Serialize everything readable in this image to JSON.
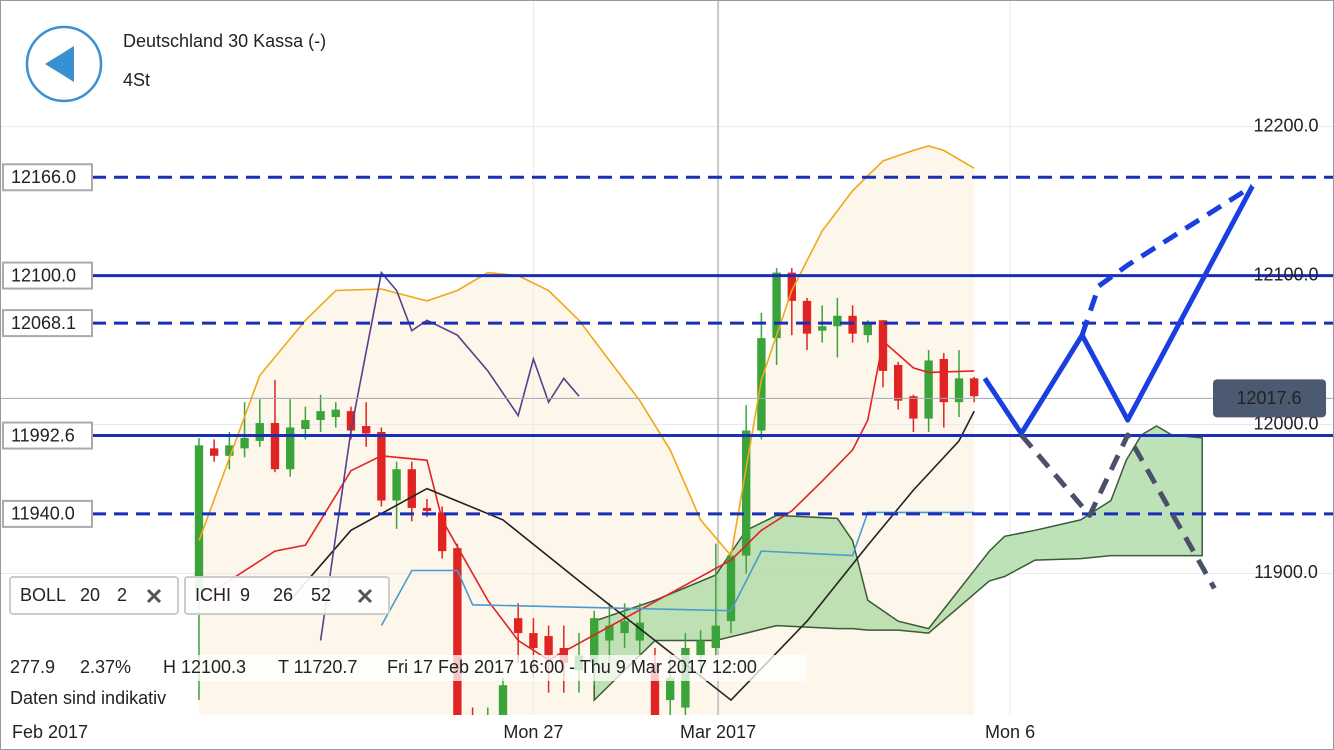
{
  "chart_data": {
    "type": "candlestick",
    "title": "Deutschland 30 Kassa (-)",
    "subtitle": "4St",
    "x": [
      0,
      1,
      2,
      3,
      4,
      5,
      6,
      7,
      8,
      9,
      10,
      11,
      12,
      13,
      14,
      15,
      16,
      17,
      18,
      19,
      20,
      21,
      22,
      23,
      24,
      25,
      26,
      27,
      28,
      29,
      30,
      31,
      32,
      33,
      34,
      35,
      36,
      37,
      38,
      39,
      40,
      41,
      42,
      43,
      44,
      45,
      46,
      47,
      48,
      49,
      50,
      51
    ],
    "open": [
      11889,
      11984,
      11979,
      11984,
      11989,
      12001,
      11970,
      11997,
      12003,
      12005,
      12009,
      11999,
      11995,
      11949,
      11970,
      11944,
      11941,
      11917,
      11800,
      11790,
      11790,
      11870,
      11860,
      11858,
      11850,
      11835,
      11840,
      11855,
      11860,
      11855,
      11840,
      11815,
      11810,
      11845,
      11850,
      11868,
      11912,
      11996,
      12058,
      12102,
      12083,
      12063,
      12066,
      12073,
      12060,
      12070,
      12040,
      12019,
      12004,
      12044,
      12015,
      12031
    ],
    "high": [
      11991,
      11990,
      11995,
      12015,
      12017,
      12030,
      12017,
      12012,
      12020,
      12015,
      12012,
      12015,
      11998,
      11975,
      11975,
      11950,
      11945,
      11920,
      11810,
      11810,
      11830,
      11880,
      11870,
      11865,
      11865,
      11860,
      11875,
      11880,
      11880,
      11880,
      11850,
      11845,
      11860,
      11862,
      11920,
      11915,
      12013,
      12075,
      12105,
      12105,
      12085,
      12080,
      12085,
      12080,
      12070,
      12070,
      12042,
      12020,
      12050,
      12048,
      12050,
      12032
    ],
    "low": [
      11815,
      11975,
      11970,
      11978,
      11985,
      11968,
      11965,
      11990,
      11995,
      11998,
      11990,
      11985,
      11945,
      11930,
      11935,
      11938,
      11910,
      11790,
      11780,
      11780,
      11785,
      11840,
      11830,
      11820,
      11820,
      11820,
      11825,
      11840,
      11850,
      11845,
      11790,
      11800,
      11800,
      11830,
      11845,
      11860,
      11900,
      11990,
      12040,
      12060,
      12050,
      12055,
      12045,
      12055,
      12055,
      12025,
      12010,
      11995,
      11995,
      11998,
      12005,
      12015
    ],
    "close": [
      11986,
      11979,
      11986,
      11991,
      12001,
      11970,
      11998,
      12003,
      12009,
      12010,
      11996,
      11994,
      11949,
      11970,
      11944,
      11942,
      11915,
      11800,
      11790,
      11800,
      11825,
      11860,
      11850,
      11845,
      11840,
      11845,
      11870,
      11865,
      11868,
      11867,
      11800,
      11830,
      11850,
      11855,
      11865,
      11912,
      11996,
      12058,
      12102,
      12083,
      12061,
      12066,
      12073,
      12061,
      12068,
      12036,
      12016,
      12004,
      12043,
      12015,
      12031,
      12019
    ],
    "up_color": "#3aa33a",
    "down_color": "#e02424",
    "xlim": [
      -13.09,
      74.67
    ],
    "ylim": [
      11805,
      12285
    ],
    "yticks": [
      {
        "value": 11900,
        "label": "11900.0"
      },
      {
        "value": 12000,
        "label": "12000.0"
      },
      {
        "value": 12100,
        "label": "12100.0"
      },
      {
        "value": 12200,
        "label": "12200.0"
      }
    ],
    "xticks": [
      {
        "value": -9.4,
        "label": "Feb 2017"
      },
      {
        "value": 22,
        "label": "Mon 27"
      },
      {
        "value": 34.15,
        "label": "Mar 2017"
      },
      {
        "value": 53.36,
        "label": "Mon 6"
      }
    ],
    "grid": true,
    "levels": [
      {
        "value": 12166,
        "label": "12166.0",
        "style": "dashed"
      },
      {
        "value": 12100,
        "label": "12100.0",
        "style": "solid"
      },
      {
        "value": 12068.1,
        "label": "12068.1",
        "style": "dashed"
      },
      {
        "value": 11992.6,
        "label": "11992.6",
        "style": "solid"
      },
      {
        "value": 11940,
        "label": "11940.0",
        "style": "dashed"
      }
    ],
    "level_color": "#1a2fb8",
    "last_price": 12017.6,
    "band_fill": "#fdf6ea",
    "lines": [
      {
        "color": "#f0a818",
        "x": [
          0,
          4,
          7,
          9,
          12,
          15,
          17,
          19,
          21,
          23,
          25,
          27,
          29,
          31,
          33,
          35,
          37,
          39,
          41,
          43,
          45,
          47,
          48,
          49,
          51
        ],
        "values": [
          11922,
          12033,
          12070,
          12090,
          12091,
          12083,
          12090,
          12102,
          12100,
          12090,
          12070,
          12043,
          12016,
          11983,
          11936,
          11912,
          12030,
          12090,
          12130,
          12157,
          12177,
          12184,
          12187,
          12184,
          12172
        ]
      },
      {
        "color": "#e02424",
        "x": [
          0,
          5,
          7,
          10,
          12,
          15,
          16,
          19,
          21,
          23,
          35,
          37,
          39,
          41,
          43,
          44,
          45,
          47,
          48,
          51
        ],
        "values": [
          11882,
          11915,
          11919,
          11969,
          11979,
          11976,
          11936,
          11882,
          11855,
          11842,
          11909,
          11929,
          11942,
          11962,
          11983,
          12003,
          12056,
          12038,
          12035,
          12036
        ]
      },
      {
        "color": "#222222",
        "x": [
          6,
          10,
          15,
          20,
          25,
          30,
          35,
          40,
          44,
          47,
          50,
          51
        ],
        "values": [
          11882,
          11929,
          11957,
          11936,
          11895,
          11855,
          11815,
          11868,
          11919,
          11956,
          11989,
          12009
        ]
      },
      {
        "color": "#5a3f8a",
        "x": [
          8,
          10,
          12,
          13,
          14,
          15,
          17,
          19,
          21,
          22,
          23,
          24,
          25
        ],
        "values": [
          11855,
          11996,
          12102,
          12090,
          12063,
          12070,
          12060,
          12036,
          12006,
          12044,
          12015,
          12031,
          12019
        ]
      },
      {
        "color": "#4a9ad0",
        "x": [
          12,
          14,
          17,
          18,
          35,
          37,
          43,
          44,
          51
        ],
        "values": [
          11865,
          11902,
          11902,
          11879,
          11875,
          11915,
          11912,
          11941,
          11941
        ]
      }
    ],
    "cloud": {
      "color": "#a8d8a0",
      "x": [
        26,
        30,
        34,
        36,
        38,
        42,
        43,
        44,
        46,
        48,
        52,
        53,
        55,
        58,
        60,
        61,
        62,
        63,
        64,
        66
      ],
      "top": [
        11868,
        11882,
        11899,
        11929,
        11939,
        11937,
        11922,
        11882,
        11868,
        11863,
        11915,
        11925,
        11929,
        11936,
        11949,
        11976,
        11993,
        11999,
        11993,
        11991
      ],
      "bottom": [
        11815,
        11855,
        11855,
        11860,
        11865,
        11863,
        11863,
        11862,
        11862,
        11860,
        11895,
        11898,
        11909,
        11910,
        11912,
        11912,
        11912,
        11912,
        11912,
        11912
      ]
    },
    "drawings": [
      {
        "color": "#1a3fe0",
        "dash": false,
        "x": [
          51.7,
          54.1,
          58.1,
          61.1,
          69.3
        ],
        "values": [
          12031,
          11994,
          12060,
          12003,
          12160
        ]
      },
      {
        "color": "#1a3fe0",
        "dash": true,
        "x": [
          58.1,
          59.2,
          61.1,
          69.3
        ],
        "values": [
          12060,
          12093,
          12107,
          12160
        ]
      },
      {
        "color": "#4a5068",
        "dash": true,
        "x": [
          54.1,
          58.6,
          61.1,
          66.8
        ],
        "values": [
          11993,
          11939,
          11993,
          11890
        ]
      }
    ],
    "indicators": [
      {
        "name": "BOLL",
        "params": [
          20,
          2
        ]
      },
      {
        "name": "ICHI",
        "params": [
          9,
          26,
          52
        ]
      }
    ],
    "info": {
      "range": "277.9",
      "change": "2.37%",
      "high": "H 12100.3",
      "low": "T 11720.7",
      "period": "Fri 17 Feb 2017 16:00 - Thu 9 Mar 2017 12:00"
    },
    "notice": "Daten sind indikativ"
  }
}
